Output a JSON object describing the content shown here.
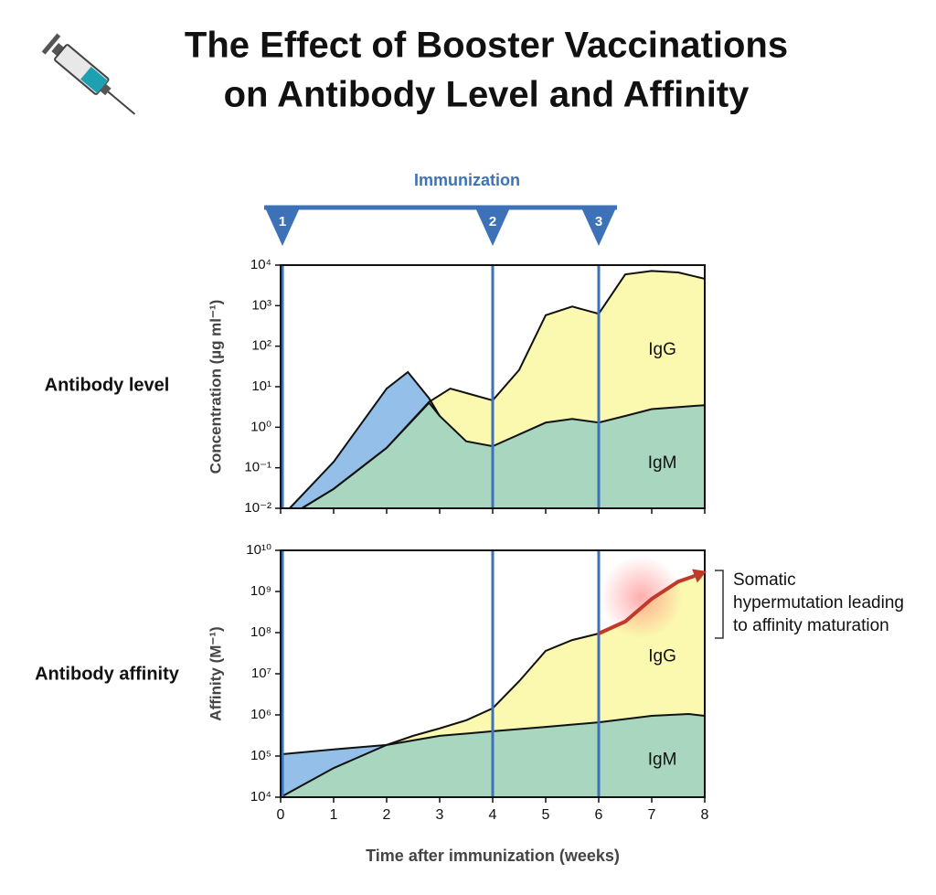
{
  "title": [
    "The Effect of Booster Vaccinations",
    "on Antibody Level and Affinity"
  ],
  "chart_data": [
    {
      "type": "area",
      "row_label": "Antibody level",
      "ylabel": "Concentration (µg ml⁻¹)",
      "log_y": true,
      "xlim": [
        0,
        8
      ],
      "xticks": [
        0,
        1,
        2,
        3,
        4,
        5,
        6,
        7,
        8
      ],
      "ylim": [
        0.01,
        10000
      ],
      "yticks": [
        {
          "value": 0.01,
          "label": "10⁻²"
        },
        {
          "value": 0.1,
          "label": "10⁻¹"
        },
        {
          "value": 1,
          "label": "10⁰"
        },
        {
          "value": 10,
          "label": "10¹"
        },
        {
          "value": 100,
          "label": "10²"
        },
        {
          "value": 1000,
          "label": "10³"
        },
        {
          "value": 10000,
          "label": "10⁴"
        }
      ],
      "immunization": {
        "label": "Immunization",
        "x": [
          0,
          4,
          6
        ],
        "labels": [
          "1",
          "2",
          "3"
        ],
        "color": "#3e72b8"
      },
      "series": [
        {
          "name": "IgG",
          "color": "#fbf8b0",
          "x": [
            0.4,
            1,
            2,
            2.8,
            3.2,
            3.5,
            4,
            4.5,
            5,
            5.5,
            6,
            6.5,
            7,
            7.5,
            8
          ],
          "values": [
            0.01,
            0.03,
            0.31,
            4.2,
            9,
            7,
            4.6,
            26,
            580,
            950,
            630,
            5900,
            7200,
            6600,
            4600
          ]
        },
        {
          "color": "#93bfe8",
          "x": [
            0.17,
            1,
            2,
            2.4,
            2.8,
            3
          ],
          "values": [
            0.01,
            0.14,
            9,
            23,
            5.2,
            1.9
          ]
        },
        {
          "name": "IgM",
          "color": "#a8d6bf",
          "x": [
            0.4,
            1,
            2,
            2.8,
            3,
            3.5,
            4,
            5,
            5.5,
            6,
            6.5,
            7,
            8
          ],
          "values": [
            0.01,
            0.03,
            0.31,
            4,
            1.9,
            0.45,
            0.34,
            1.3,
            1.6,
            1.3,
            1.9,
            2.8,
            3.5
          ]
        }
      ]
    },
    {
      "type": "area",
      "row_label": "Antibody affinity",
      "ylabel": "Affinity (M⁻¹)",
      "log_y": true,
      "xlabel": "Time after immunization (weeks)",
      "xlim": [
        0,
        8
      ],
      "xticks": [
        0,
        1,
        2,
        3,
        4,
        5,
        6,
        7,
        8
      ],
      "ylim": [
        10000,
        10000000000
      ],
      "yticks": [
        {
          "value": 10000,
          "label": "10⁴"
        },
        {
          "value": 100000,
          "label": "10⁵"
        },
        {
          "value": 1000000,
          "label": "10⁶"
        },
        {
          "value": 10000000,
          "label": "10⁷"
        },
        {
          "value": 100000000,
          "label": "10⁸"
        },
        {
          "value": 1000000000,
          "label": "10⁹"
        },
        {
          "value": 10000000000,
          "label": "10¹⁰"
        }
      ],
      "immunization_x": [
        0,
        4,
        6
      ],
      "annotation": [
        "Somatic",
        "hypermutation leading",
        "to affinity maturation"
      ],
      "series": [
        {
          "name": "IgG",
          "color": "#fbf8b0",
          "x": [
            2,
            2.5,
            3,
            3.5,
            4,
            4.5,
            5,
            5.5,
            6,
            6.5,
            7,
            7.5,
            8
          ],
          "values": [
            186000,
            310000,
            470000,
            740000,
            1450000,
            6600000,
            36000000,
            66000000,
            95000000,
            186000000,
            660000000,
            1740000000,
            3100000000
          ]
        },
        {
          "color": "#93bfe8",
          "x": [
            0,
            1,
            2
          ],
          "values": [
            110000,
            145000,
            186000
          ]
        },
        {
          "name": "IgM",
          "color": "#a8d6bf",
          "x": [
            0,
            1,
            2,
            3,
            4,
            5,
            6,
            7,
            7.7,
            8
          ],
          "values": [
            10000,
            51000,
            186000,
            310000,
            400000,
            510000,
            660000,
            950000,
            1050000,
            950000
          ]
        }
      ]
    }
  ]
}
